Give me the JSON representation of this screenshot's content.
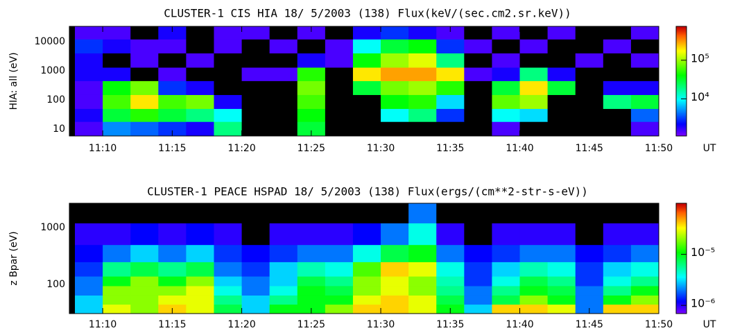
{
  "chart_data": [
    {
      "type": "heatmap",
      "title": "CLUSTER-1  CIS HIA 18/ 5/2003 (138) Flux(keV/(sec.cm2.sr.keV))",
      "y_label": "HIA: all (eV)",
      "x_unit_label": "UT",
      "xlim": [
        667.6,
        710
      ],
      "xticks": [
        {
          "value": 670,
          "label": "11:10"
        },
        {
          "value": 675,
          "label": "11:15"
        },
        {
          "value": 680,
          "label": "11:20"
        },
        {
          "value": 685,
          "label": "11:25"
        },
        {
          "value": 690,
          "label": "11:30"
        },
        {
          "value": 695,
          "label": "11:35"
        },
        {
          "value": 700,
          "label": "11:40"
        },
        {
          "value": 705,
          "label": "11:45"
        },
        {
          "value": 710,
          "label": "11:50"
        }
      ],
      "ylim": [
        5.8,
        33000
      ],
      "ylog": true,
      "yticks": [
        10,
        100,
        1000,
        10000
      ],
      "xbins": [
        668,
        670,
        672,
        674,
        676,
        678,
        680,
        682,
        684,
        686,
        688,
        690,
        692,
        694,
        696,
        698,
        700,
        702,
        704,
        706,
        708,
        710
      ],
      "ybins": [
        5.8,
        18,
        50,
        150,
        450,
        1300,
        4000,
        12000,
        33000
      ],
      "z": [
        [
          1500,
          5000,
          4000,
          3000,
          2000,
          20000,
          0,
          0,
          30000,
          0,
          0,
          0,
          0,
          0,
          0,
          1500,
          0,
          0,
          0,
          0,
          1500
        ],
        [
          2000,
          30000,
          50000,
          30000,
          20000,
          10000,
          0,
          0,
          40000,
          0,
          0,
          10000,
          20000,
          3000,
          0,
          10000,
          8000,
          0,
          0,
          0,
          4000
        ],
        [
          1500,
          60000,
          200000,
          60000,
          80000,
          2000,
          0,
          0,
          60000,
          0,
          0,
          40000,
          50000,
          8000,
          0,
          70000,
          100000,
          0,
          0,
          20000,
          30000
        ],
        [
          1500,
          40000,
          80000,
          3000,
          2000,
          0,
          0,
          0,
          80000,
          0,
          30000,
          80000,
          100000,
          50000,
          0,
          30000,
          200000,
          30000,
          0,
          2000,
          2000
        ],
        [
          2000,
          2000,
          0,
          1500,
          0,
          0,
          1500,
          1500,
          50000,
          0,
          200000,
          300000,
          300000,
          200000,
          1500,
          2000,
          20000,
          2000,
          0,
          0,
          0
        ],
        [
          2000,
          0,
          1500,
          0,
          1500,
          0,
          0,
          0,
          2000,
          1500,
          40000,
          100000,
          150000,
          20000,
          0,
          1500,
          0,
          0,
          1500,
          0,
          1500
        ],
        [
          3000,
          2000,
          1500,
          1500,
          0,
          1500,
          0,
          1500,
          0,
          1500,
          10000,
          30000,
          40000,
          3000,
          1500,
          0,
          1500,
          0,
          0,
          1500,
          0
        ],
        [
          1500,
          1500,
          0,
          2000,
          0,
          1500,
          1500,
          0,
          1500,
          0,
          2000,
          3000,
          2000,
          1500,
          0,
          1500,
          0,
          1500,
          0,
          0,
          1500
        ]
      ],
      "colorbar_lim": [
        1100,
        750000
      ],
      "colorbar_log": true,
      "colorbar_ticks": [
        {
          "value": 10000,
          "label": "10⁴"
        },
        {
          "value": 100000,
          "label": "10⁵"
        }
      ]
    },
    {
      "type": "heatmap",
      "title": "CLUSTER-1  PEACE HSPAD 18/ 5/2003 (138) Flux(ergs/(cm**2-str-s-eV))",
      "y_label": "z Bpar (eV)",
      "x_unit_label": "UT",
      "xlim": [
        667.6,
        710
      ],
      "xticks": [
        {
          "value": 670,
          "label": "11:10"
        },
        {
          "value": 675,
          "label": "11:15"
        },
        {
          "value": 680,
          "label": "11:20"
        },
        {
          "value": 685,
          "label": "11:25"
        },
        {
          "value": 690,
          "label": "11:30"
        },
        {
          "value": 695,
          "label": "11:35"
        },
        {
          "value": 700,
          "label": "11:40"
        },
        {
          "value": 705,
          "label": "11:45"
        },
        {
          "value": 710,
          "label": "11:50"
        }
      ],
      "ylim": [
        31,
        2670
      ],
      "ylog": true,
      "yticks": [
        100,
        1000
      ],
      "xbins": [
        668,
        670,
        672,
        674,
        676,
        678,
        680,
        682,
        684,
        686,
        688,
        690,
        692,
        694,
        696,
        698,
        700,
        702,
        704,
        706,
        708,
        710
      ],
      "ybins": [
        31,
        45,
        65,
        95,
        140,
        250,
        500,
        1200,
        2670
      ],
      "z": [
        [
          3e-06,
          3e-05,
          2e-05,
          4e-05,
          3e-05,
          8e-06,
          3e-06,
          1e-05,
          1e-05,
          2e-05,
          4e-05,
          4e-05,
          3e-05,
          1e-05,
          3e-06,
          4e-05,
          4e-05,
          3e-05,
          2e-06,
          4e-05,
          4e-05
        ],
        [
          3e-06,
          2e-05,
          2e-05,
          3e-05,
          3e-05,
          6e-06,
          3e-06,
          6e-06,
          1e-05,
          1e-05,
          3e-05,
          4e-05,
          3e-05,
          8e-06,
          2e-06,
          8e-06,
          2e-05,
          1e-05,
          2e-06,
          1e-05,
          2e-05
        ],
        [
          2e-06,
          2e-05,
          2e-05,
          2e-05,
          3e-05,
          4e-06,
          2e-06,
          4e-06,
          1e-05,
          8e-06,
          2e-05,
          3e-05,
          2e-05,
          6e-06,
          2e-06,
          6e-06,
          1e-05,
          8e-06,
          2e-06,
          6e-06,
          1e-05
        ],
        [
          2e-06,
          1e-05,
          2e-05,
          1e-05,
          2e-05,
          3e-06,
          2e-06,
          3e-06,
          8e-06,
          6e-06,
          2e-05,
          3e-05,
          2e-05,
          5e-06,
          1.5e-06,
          4e-06,
          8e-06,
          6e-06,
          1.5e-06,
          4e-06,
          6e-06
        ],
        [
          1.5e-06,
          6e-06,
          8e-06,
          6e-06,
          8e-06,
          2e-06,
          1.5e-06,
          3e-06,
          5e-06,
          4e-06,
          1.5e-05,
          4e-05,
          3e-05,
          4e-06,
          1.5e-06,
          3e-06,
          5e-06,
          4e-06,
          1.5e-06,
          3e-06,
          4e-06
        ],
        [
          1.2e-06,
          2e-06,
          3e-06,
          2e-06,
          3e-06,
          1.5e-06,
          1.2e-06,
          1.5e-06,
          2e-06,
          2e-06,
          4e-06,
          8e-06,
          1e-05,
          2e-06,
          1.2e-06,
          1.5e-06,
          2e-06,
          2e-06,
          1.2e-06,
          1.5e-06,
          2e-06
        ],
        [
          1e-06,
          1e-06,
          1.2e-06,
          1e-06,
          1.2e-06,
          1e-06,
          0,
          1e-06,
          1e-06,
          1e-06,
          1.2e-06,
          2e-06,
          4e-06,
          1e-06,
          0,
          1e-06,
          1e-06,
          1e-06,
          0,
          1e-06,
          1e-06
        ],
        [
          0,
          0,
          0,
          0,
          0,
          0,
          0,
          0,
          0,
          0,
          0,
          0,
          2e-06,
          0,
          0,
          0,
          0,
          0,
          0,
          0,
          0
        ]
      ],
      "colorbar_lim": [
        6.9e-07,
        0.0001
      ],
      "colorbar_log": true,
      "colorbar_ticks": [
        {
          "value": 1e-06,
          "label": "10⁻⁶"
        },
        {
          "value": 1e-05,
          "label": "10⁻⁵"
        }
      ]
    }
  ]
}
